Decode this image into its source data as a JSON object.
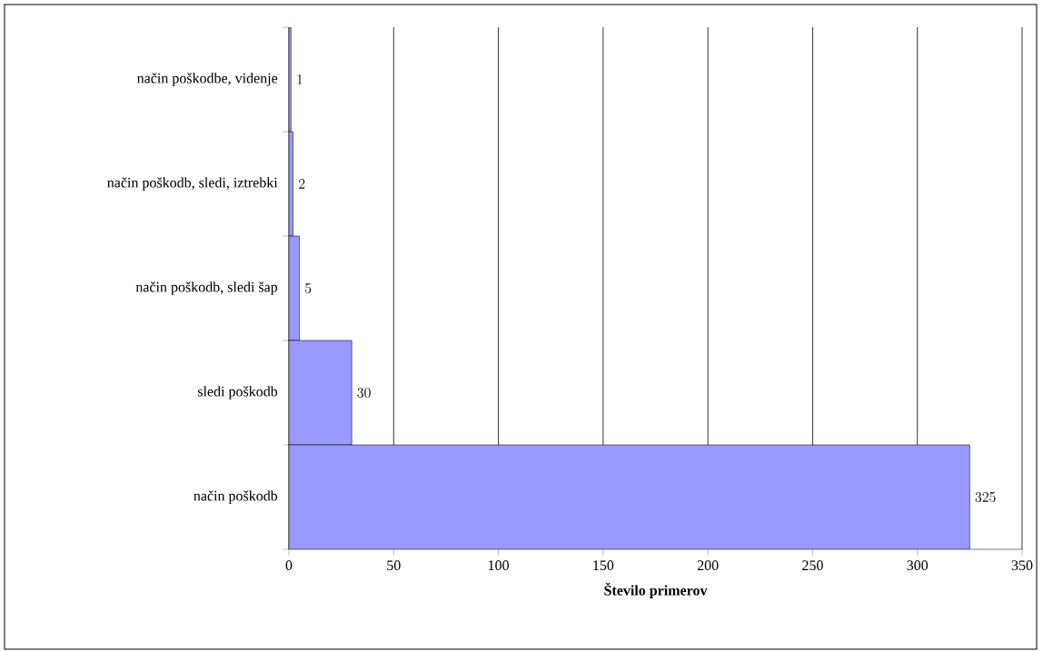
{
  "chart_data": {
    "type": "bar",
    "orientation": "horizontal",
    "xlabel": "Število primerov",
    "categories": [
      "način poškodbe, videnje",
      "način poškodb, sledi, iztrebki",
      "način poškodb, sledi šap",
      "sledi poškodb",
      "način poškodb"
    ],
    "values": [
      1,
      2,
      5,
      30,
      325
    ],
    "color": "#9999ff",
    "xlim": [
      0,
      350
    ],
    "xticks": [
      0,
      50,
      100,
      150,
      200,
      250,
      300,
      350
    ],
    "grid": "x",
    "data_labels": true
  }
}
